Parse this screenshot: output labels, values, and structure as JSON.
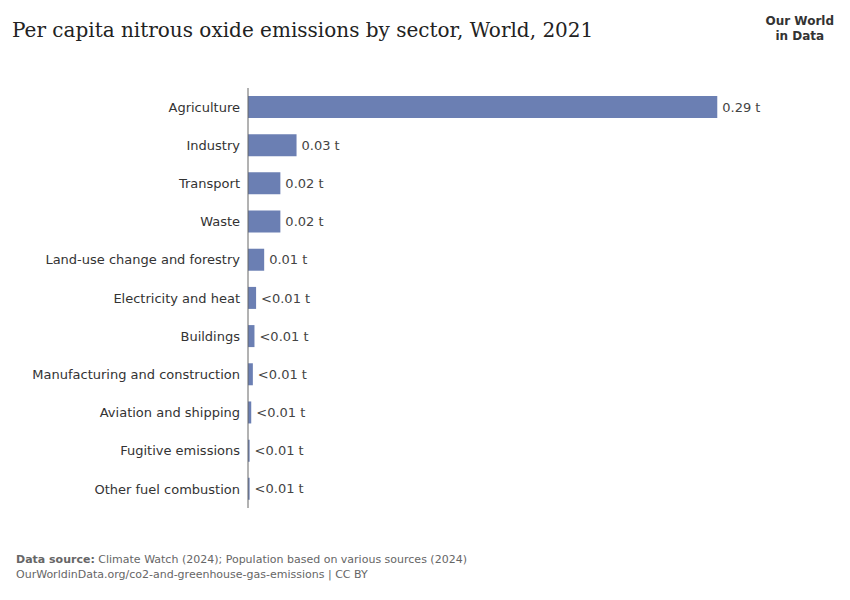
{
  "chart_data": {
    "type": "bar",
    "orientation": "horizontal",
    "title": "Per capita nitrous oxide emissions by sector, World, 2021",
    "categories": [
      "Agriculture",
      "Industry",
      "Transport",
      "Waste",
      "Land-use change and forestry",
      "Electricity and heat",
      "Buildings",
      "Manufacturing and construction",
      "Aviation and shipping",
      "Fugitive emissions",
      "Other fuel combustion"
    ],
    "values": [
      0.29,
      0.03,
      0.02,
      0.02,
      0.01,
      0.005,
      0.004,
      0.003,
      0.002,
      0.001,
      0.001
    ],
    "value_labels": [
      "0.29 t",
      "0.03 t",
      "0.02 t",
      "0.02 t",
      "0.01 t",
      "<0.01 t",
      "<0.01 t",
      "<0.01 t",
      "<0.01 t",
      "<0.01 t",
      "<0.01 t"
    ],
    "data_labels": true,
    "color": "#6b7fb3",
    "xlim": [
      0,
      0.33
    ],
    "tick_labels": "y",
    "grid": false,
    "annotations": [
      "Data source: Climate Watch (2024); Population based on various sources (2024)",
      "OurWorldinData.org/co2-and-greenhouse-gas-emissions | CC BY",
      "Our World\nin Data"
    ]
  }
}
